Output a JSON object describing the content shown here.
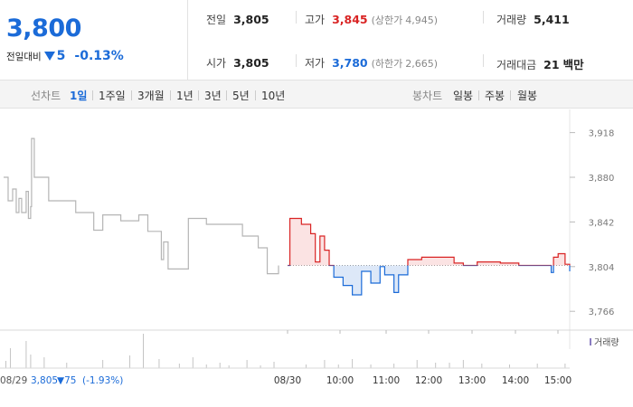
{
  "price": {
    "current": "3,800",
    "diff_label": "전일대비",
    "diff_value": "5",
    "diff_pct": "-0.13%"
  },
  "stats": {
    "prev_close_label": "전일",
    "prev_close": "3,805",
    "high_label": "고가",
    "high": "3,845",
    "upper_limit_label": "(상한가",
    "upper_limit": "4,945)",
    "volume_label": "거래량",
    "volume": "5,411",
    "open_label": "시가",
    "open": "3,805",
    "low_label": "저가",
    "low": "3,780",
    "lower_limit_label": "(하한가",
    "lower_limit": "2,665)",
    "amount_label": "거래대금",
    "amount": "21",
    "amount_unit": "백만"
  },
  "tabs": {
    "line_label": "선차트",
    "line_items": [
      "1일",
      "1주일",
      "3개월",
      "1년",
      "3년",
      "5년",
      "10년"
    ],
    "candle_label": "봉차트",
    "candle_items": [
      "일봉",
      "주봉",
      "월봉"
    ]
  },
  "colors": {
    "up": "#d92424",
    "down": "#1b6bd8",
    "prev_day_line": "#b5b5b5",
    "up_fill": "#fbe3e3",
    "down_fill": "#dde8f8"
  },
  "chart_data": {
    "type": "line",
    "ylim": [
      3750,
      3930
    ],
    "yticks": [
      3766,
      3804,
      3842,
      3880,
      3918
    ],
    "ytick_labels": [
      "3,766",
      "3,804",
      "3,842",
      "3,880",
      "3,918"
    ],
    "baseline": 3805,
    "xtick_labels": [
      "08/30",
      "10:00",
      "11:00",
      "12:00",
      "13:00",
      "14:00",
      "15:00"
    ],
    "prev_day_series": [
      [
        0,
        3880
      ],
      [
        0.1,
        3860
      ],
      [
        0.2,
        3870
      ],
      [
        0.28,
        3850
      ],
      [
        0.34,
        3862
      ],
      [
        0.4,
        3850
      ],
      [
        0.5,
        3868
      ],
      [
        0.55,
        3845
      ],
      [
        0.6,
        3855
      ],
      [
        0.62,
        3913
      ],
      [
        0.68,
        3880
      ],
      [
        0.9,
        3880
      ],
      [
        1.0,
        3860
      ],
      [
        1.3,
        3860
      ],
      [
        1.6,
        3850
      ],
      [
        2.0,
        3835
      ],
      [
        2.2,
        3848
      ],
      [
        2.6,
        3843
      ],
      [
        3.0,
        3848
      ],
      [
        3.2,
        3834
      ],
      [
        3.5,
        3810
      ],
      [
        3.55,
        3825
      ],
      [
        3.65,
        3802
      ],
      [
        3.9,
        3802
      ],
      [
        4.1,
        3845
      ],
      [
        4.4,
        3845
      ],
      [
        4.5,
        3840
      ],
      [
        5.2,
        3840
      ],
      [
        5.3,
        3830
      ],
      [
        5.55,
        3830
      ],
      [
        5.65,
        3820
      ],
      [
        5.85,
        3798
      ],
      [
        6.1,
        3805
      ]
    ],
    "today_series": [
      [
        0,
        3805
      ],
      [
        0.05,
        3845
      ],
      [
        0.3,
        3840
      ],
      [
        0.5,
        3832
      ],
      [
        0.6,
        3808
      ],
      [
        0.7,
        3830
      ],
      [
        0.8,
        3818
      ],
      [
        0.9,
        3805
      ],
      [
        1.0,
        3795
      ],
      [
        1.2,
        3788
      ],
      [
        1.4,
        3780
      ],
      [
        1.6,
        3800
      ],
      [
        1.8,
        3790
      ],
      [
        2.0,
        3804
      ],
      [
        2.1,
        3797
      ],
      [
        2.3,
        3782
      ],
      [
        2.4,
        3797
      ],
      [
        2.6,
        3810
      ],
      [
        2.9,
        3812
      ],
      [
        3.4,
        3812
      ],
      [
        3.6,
        3807
      ],
      [
        3.8,
        3805
      ],
      [
        4.1,
        3808
      ],
      [
        4.6,
        3807
      ],
      [
        5.0,
        3805
      ],
      [
        5.6,
        3805
      ],
      [
        5.7,
        3799
      ],
      [
        5.75,
        3812
      ],
      [
        5.85,
        3815
      ],
      [
        6.0,
        3806
      ],
      [
        6.1,
        3800
      ]
    ],
    "footer_prev": {
      "date": "08/29",
      "close": "3,805",
      "change": "▼75",
      "pct": "(-1.93%)"
    },
    "volume_legend": "거래량",
    "volume_bars": [
      [
        0.05,
        8
      ],
      [
        0.15,
        22
      ],
      [
        0.5,
        30
      ],
      [
        0.6,
        15
      ],
      [
        0.9,
        12
      ],
      [
        1.4,
        6
      ],
      [
        2.2,
        9
      ],
      [
        2.8,
        14
      ],
      [
        3.1,
        38
      ],
      [
        3.45,
        10
      ],
      [
        3.9,
        5
      ],
      [
        4.2,
        12
      ],
      [
        4.5,
        4
      ],
      [
        4.8,
        6
      ],
      [
        5.0,
        3
      ],
      [
        5.4,
        9
      ],
      [
        5.7,
        3
      ],
      [
        6.0,
        7
      ],
      [
        6.6,
        4
      ],
      [
        7.0,
        9
      ],
      [
        7.3,
        4
      ],
      [
        7.6,
        10
      ],
      [
        8.0,
        4
      ],
      [
        8.5,
        5
      ],
      [
        9.0,
        9
      ],
      [
        9.4,
        6
      ],
      [
        9.7,
        6
      ],
      [
        10.0,
        9
      ],
      [
        10.4,
        5
      ],
      [
        11.0,
        4
      ],
      [
        11.6,
        5
      ],
      [
        12.2,
        5
      ]
    ]
  }
}
